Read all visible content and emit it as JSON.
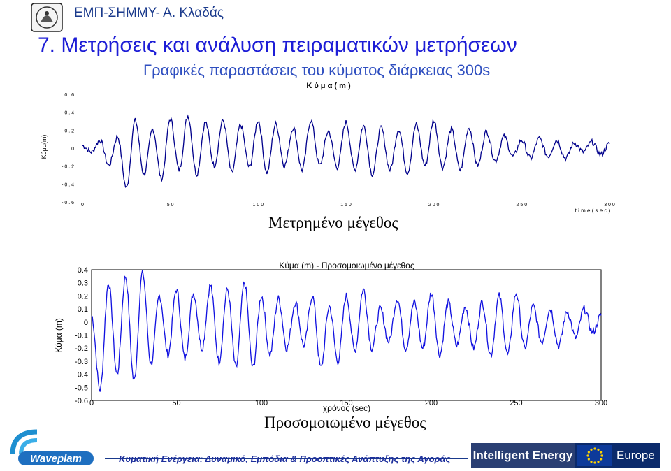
{
  "header": {
    "org": "ΕΜΠ-ΣΗΜΜΥ- Α. Κλαδάς",
    "title": "7. Μετρήσεις και ανάλυση  πειραματικών μετρήσεων",
    "subtitle": "Γραφικές παραστάσεις του κύματος διάρκειας 300s"
  },
  "captions": {
    "measured": "Μετρημένο μέγεθος",
    "simulated": "Προσομοιωμένο μέγεθος"
  },
  "footer": {
    "text": "Κυματική Ενέργεια: Δυναμικό, Εμπόδια & Προοπτικές Ανάπτυξης της Αγοράς",
    "logo_text": "Waveplam",
    "banner_left": "Intelligent Energy",
    "banner_right": "Europe"
  },
  "chart_data": [
    {
      "type": "line",
      "title": "Κ ύ μ α ( m )",
      "xlabel": "t i m e ( s e c )",
      "ylabel": "Κύμα(m)",
      "xlim": [
        0,
        300
      ],
      "ylim": [
        -0.6,
        0.6
      ],
      "x_ticks": [
        "0",
        "5 0",
        "1 0 0",
        "1 5 0",
        "2 0 0",
        "2 5 0",
        "3 0 0"
      ],
      "y_ticks": [
        "0 . 6",
        "0 . 4",
        "0 . 2",
        "0",
        "- 0 . 2",
        "- 0 . 4",
        "- 0 . 6"
      ],
      "grid": false,
      "series_color": "#00008b",
      "series": [
        {
          "x": [
            0,
            5,
            10,
            15,
            20,
            25,
            30,
            35,
            40,
            45,
            50,
            55,
            60,
            65,
            70,
            75,
            80,
            85,
            90,
            95,
            100,
            105,
            110,
            115,
            120,
            125,
            130,
            135,
            140,
            145,
            150,
            155,
            160,
            165,
            170,
            175,
            180,
            185,
            190,
            195,
            200,
            205,
            210,
            215,
            220,
            225,
            230,
            235,
            240,
            245,
            250,
            255,
            260,
            265,
            270,
            275,
            280,
            285,
            290,
            295,
            300
          ],
          "y": [
            0.02,
            -0.05,
            0.08,
            -0.2,
            0.12,
            -0.45,
            0.3,
            -0.3,
            0.2,
            -0.35,
            0.32,
            -0.25,
            0.35,
            -0.3,
            0.28,
            -0.2,
            0.3,
            -0.28,
            0.25,
            -0.22,
            0.3,
            -0.28,
            0.26,
            -0.2,
            0.22,
            -0.25,
            0.3,
            -0.2,
            0.18,
            -0.22,
            0.28,
            -0.25,
            0.24,
            -0.3,
            0.22,
            -0.25,
            0.2,
            -0.28,
            0.25,
            -0.2,
            0.3,
            -0.22,
            0.2,
            -0.25,
            0.22,
            -0.2,
            0.18,
            -0.15,
            0.12,
            -0.1,
            0.08,
            -0.12,
            0.1,
            -0.1,
            0.08,
            -0.12,
            0.05,
            -0.05,
            0.06,
            -0.08,
            0.04
          ]
        }
      ]
    },
    {
      "type": "line",
      "title": "Κύμα (m) - Προσομοιωμένο μέγεθος",
      "xlabel": "χρόνος (sec)",
      "ylabel": "Κύμα (m)",
      "xlim": [
        0,
        300
      ],
      "ylim": [
        -0.6,
        0.4
      ],
      "x_ticks": [
        "0",
        "50",
        "100",
        "150",
        "200",
        "250",
        "300"
      ],
      "y_ticks": [
        "0.4",
        "0.3",
        "0.2",
        "0.1",
        "0",
        "-0.1",
        "-0.2",
        "-0.3",
        "-0.4",
        "-0.5",
        "-0.6"
      ],
      "grid": false,
      "series_color": "#1010e0",
      "series": [
        {
          "x": [
            0,
            5,
            10,
            15,
            20,
            25,
            30,
            35,
            40,
            45,
            50,
            55,
            60,
            65,
            70,
            75,
            80,
            85,
            90,
            95,
            100,
            105,
            110,
            115,
            120,
            125,
            130,
            135,
            140,
            145,
            150,
            155,
            160,
            165,
            170,
            175,
            180,
            185,
            190,
            195,
            200,
            205,
            210,
            215,
            220,
            225,
            230,
            235,
            240,
            245,
            250,
            255,
            260,
            265,
            270,
            275,
            280,
            285,
            290,
            295,
            300
          ],
          "y": [
            0.05,
            -0.52,
            0.3,
            -0.4,
            0.35,
            -0.45,
            0.38,
            -0.32,
            0.2,
            -0.25,
            0.25,
            -0.28,
            0.22,
            -0.2,
            0.28,
            -0.3,
            0.25,
            -0.35,
            0.3,
            -0.35,
            0.2,
            -0.25,
            0.18,
            -0.2,
            0.15,
            -0.18,
            0.2,
            -0.35,
            0.12,
            -0.3,
            0.2,
            -0.22,
            0.25,
            -0.2,
            0.1,
            -0.15,
            0.18,
            -0.2,
            0.15,
            -0.2,
            0.22,
            -0.25,
            0.15,
            -0.18,
            0.12,
            -0.2,
            0.15,
            -0.25,
            0.2,
            -0.25,
            0.22,
            -0.2,
            0.12,
            -0.15,
            0.1,
            -0.18,
            0.08,
            -0.12,
            0.1,
            -0.08,
            0.05
          ]
        }
      ]
    }
  ]
}
